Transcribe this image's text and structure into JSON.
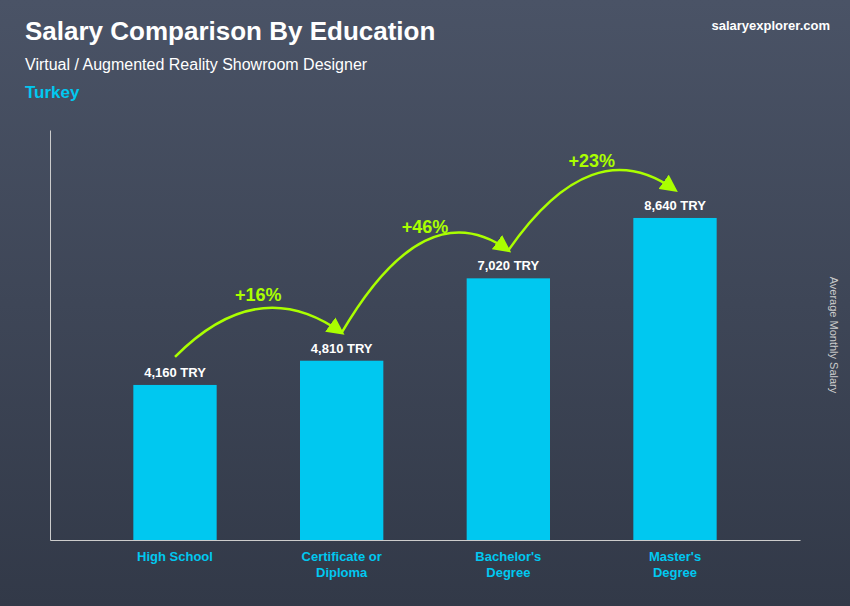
{
  "chart_data": {
    "type": "bar",
    "title": "Salary Comparison By Education",
    "subtitle": "Virtual / Augmented Reality Showroom Designer",
    "country": "Turkey",
    "source": "salaryexplorer.com",
    "ylabel": "Average Monthly Salary",
    "categories": [
      "High School",
      "Certificate or\nDiploma",
      "Bachelor's\nDegree",
      "Master's\nDegree"
    ],
    "values": [
      4160,
      4810,
      7020,
      8640
    ],
    "value_labels": [
      "4,160 TRY",
      "4,810 TRY",
      "7,020 TRY",
      "8,640 TRY"
    ],
    "data_labels": true,
    "color": "#00c8f0",
    "ylim": [
      0,
      11000
    ],
    "tick_labels": "x",
    "grid": false,
    "annotations": [
      {
        "text": "+16%",
        "color": "#aaff00"
      },
      {
        "text": "+46%",
        "color": "#aaff00"
      },
      {
        "text": "+23%",
        "color": "#aaff00"
      }
    ]
  }
}
